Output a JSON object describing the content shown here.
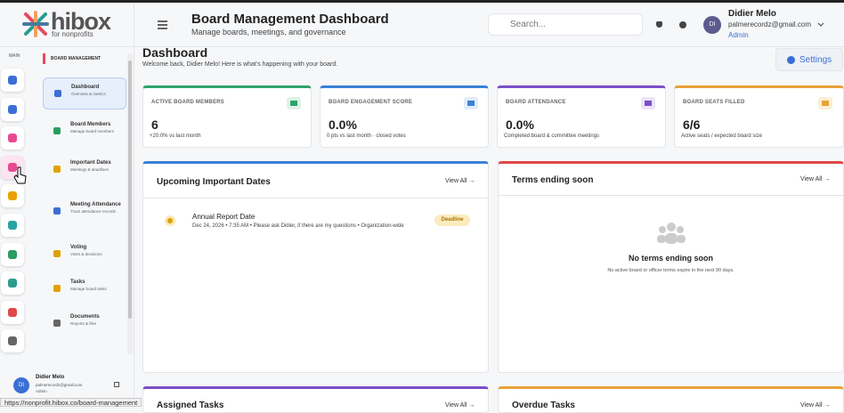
{
  "logo": {
    "name": "hibox",
    "tagline": "for nonprofits"
  },
  "header": {
    "title": "Board Management Dashboard",
    "subtitle": "Manage boards, meetings, and governance",
    "search_placeholder": "Search...",
    "user": {
      "initials": "DI",
      "name": "Didier Melo",
      "email": "palmerecordz@gmail.com",
      "role": "Admin"
    }
  },
  "rail": {
    "label": "MAIN"
  },
  "sidebar": {
    "title": "BOARD MANAGEMENT",
    "items": [
      {
        "label": "Dashboard",
        "description": "Overview & metrics"
      },
      {
        "label": "Board Members",
        "description": "Manage board members"
      },
      {
        "label": "Important Dates",
        "description": "Meetings & deadlines"
      },
      {
        "label": "Meeting Attendance",
        "description": "Track attendance records"
      },
      {
        "label": "Voting",
        "description": "Votes & decisions"
      },
      {
        "label": "Tasks",
        "description": "Manage board tasks"
      },
      {
        "label": "Documents",
        "description": "Reports & files"
      }
    ],
    "user": {
      "initials": "DI",
      "name": "Didier Melo",
      "email": "palmerecordz@gmail.com",
      "role": "Admin"
    }
  },
  "status_url": "https://nonprofit.hibox.co/board-management",
  "page": {
    "title": "Dashboard",
    "welcome": "Welcome back, Didier Melo! Here is what's happening with your board.",
    "settings": "Settings"
  },
  "stats": [
    {
      "label": "ACTIVE BOARD MEMBERS",
      "value": "6",
      "note": "+20.0% vs last month"
    },
    {
      "label": "BOARD ENGAGEMENT SCORE",
      "value": "0.0%",
      "note": "0 pts vs last month · closed votes"
    },
    {
      "label": "BOARD ATTENDANCE",
      "value": "0.0%",
      "note": "Completed board & committee meetings"
    },
    {
      "label": "BOARD SEATS FILLED",
      "value": "6/6",
      "note": "Active seats / expected board size"
    }
  ],
  "panels": {
    "upcoming": {
      "title": "Upcoming Important Dates",
      "view_all": "View All →",
      "items": [
        {
          "title": "Annual Report Date",
          "details": "Dec 24, 2026 • 7:35 AM • Please ask Didier, if there are my questions • Organization-wide",
          "badge": "Deadline"
        }
      ]
    },
    "terms": {
      "title": "Terms ending soon",
      "view_all": "View All →",
      "empty_title": "No terms ending soon",
      "empty_text": "No active board or officer terms expire in the next 90 days."
    },
    "assigned": {
      "title": "Assigned Tasks",
      "view_all": "View All →"
    },
    "overdue": {
      "title": "Overdue Tasks",
      "view_all": "View All →"
    }
  }
}
